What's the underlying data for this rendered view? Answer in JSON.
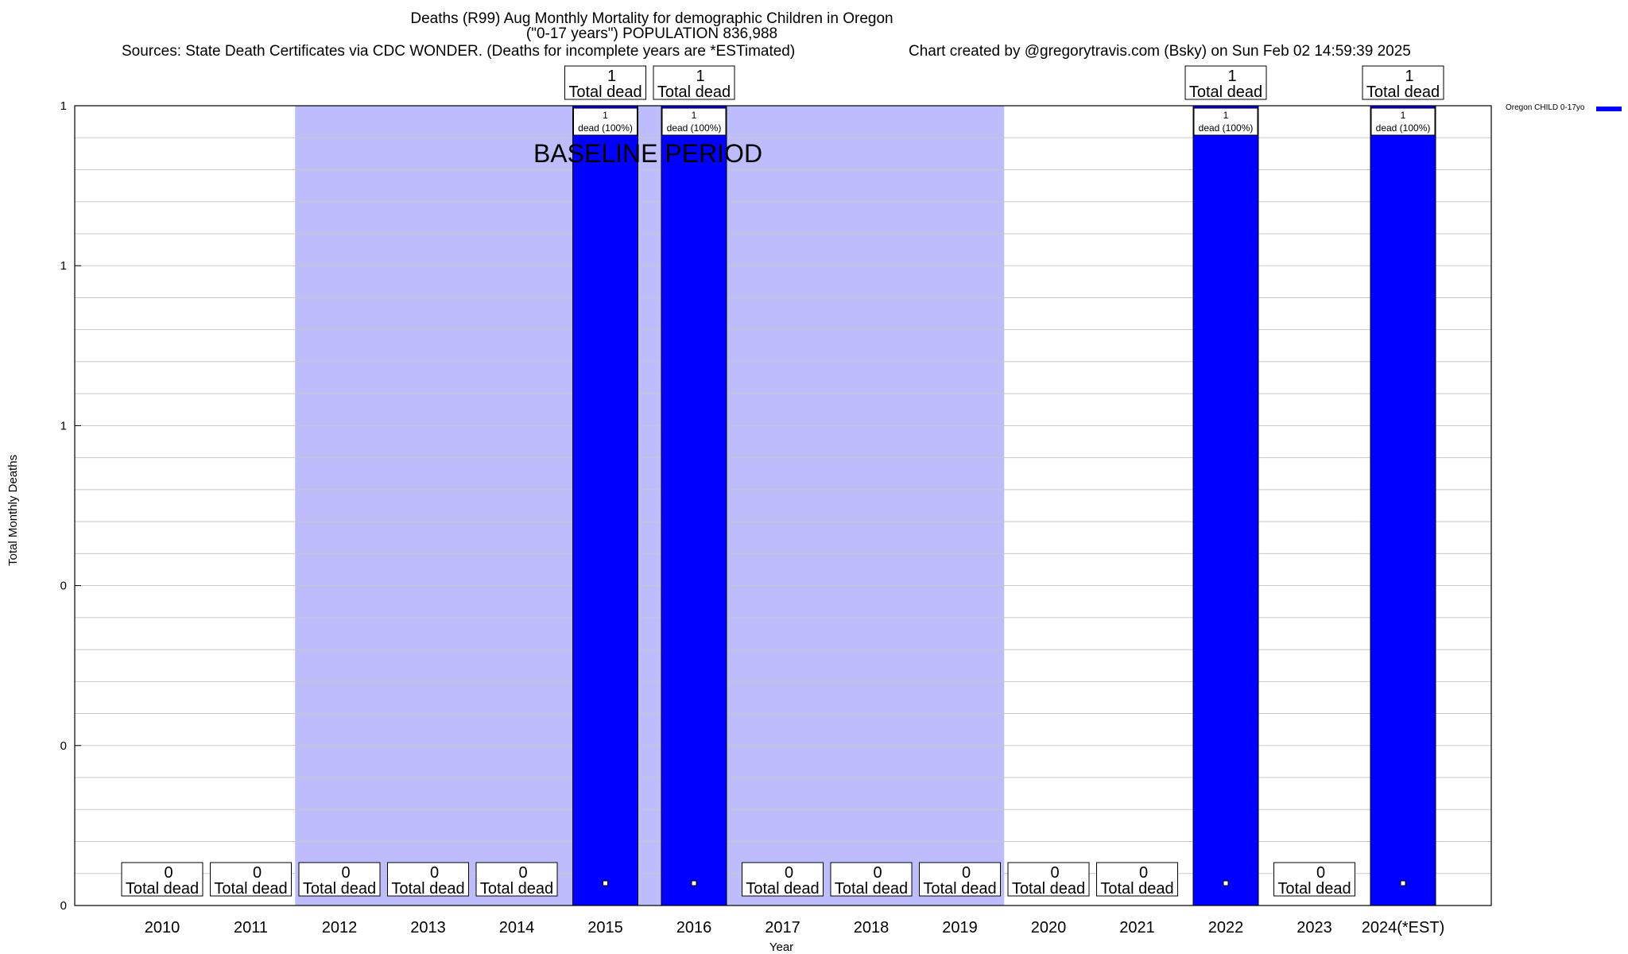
{
  "header": {
    "title_line1": "Deaths (R99) Aug Monthly Mortality for demographic Children in Oregon",
    "title_line2": "(\"0-17 years\") POPULATION 836,988",
    "sources": "Sources: State Death Certificates via CDC WONDER. (Deaths for incomplete years are *ESTimated)",
    "credit": "Chart created by @gregorytravis.com (Bsky) on Sun Feb 02 14:59:39 2025"
  },
  "chart_data": {
    "type": "bar",
    "title": "Deaths (R99) Aug Monthly Mortality for demographic Children in Oregon",
    "xlabel": "Year",
    "ylabel": "Total Monthly Deaths",
    "categories": [
      "2010",
      "2011",
      "2012",
      "2013",
      "2014",
      "2015",
      "2016",
      "2017",
      "2018",
      "2019",
      "2020",
      "2021",
      "2022",
      "2023",
      "2024(*EST)"
    ],
    "series": [
      {
        "name": "Oregon CHILD 0-17yo",
        "color": "#0000ff",
        "values": [
          0,
          0,
          0,
          0,
          0,
          1,
          1,
          0,
          0,
          0,
          0,
          0,
          1,
          0,
          1
        ]
      }
    ],
    "ylim": [
      0,
      1
    ],
    "yticks": [
      0,
      0.2,
      0.4,
      0.6,
      0.8,
      1
    ],
    "ytick_labels": [
      "0",
      "0",
      "0",
      "1",
      "1",
      "1"
    ],
    "total_labels": [
      {
        "count": "0",
        "text": "Total dead"
      },
      {
        "count": "0",
        "text": "Total dead"
      },
      {
        "count": "0",
        "text": "Total dead"
      },
      {
        "count": "0",
        "text": "Total dead"
      },
      {
        "count": "0",
        "text": "Total dead"
      },
      {
        "count": "1",
        "text": "Total dead"
      },
      {
        "count": "1",
        "text": "Total dead"
      },
      {
        "count": "0",
        "text": "Total dead"
      },
      {
        "count": "0",
        "text": "Total dead"
      },
      {
        "count": "0",
        "text": "Total dead"
      },
      {
        "count": "0",
        "text": "Total dead"
      },
      {
        "count": "0",
        "text": "Total dead"
      },
      {
        "count": "1",
        "text": "Total dead"
      },
      {
        "count": "0",
        "text": "Total dead"
      },
      {
        "count": "1",
        "text": "Total dead"
      }
    ],
    "bar_inner_labels": [
      null,
      null,
      null,
      null,
      null,
      {
        "count": "1",
        "text": "dead (100%)"
      },
      {
        "count": "1",
        "text": "dead (100%)"
      },
      null,
      null,
      null,
      null,
      null,
      {
        "count": "1",
        "text": "dead (100%)"
      },
      null,
      {
        "count": "1",
        "text": "dead (100%)"
      }
    ],
    "baseline": {
      "label": "BASELINE PERIOD",
      "start": "2012",
      "end": "2019",
      "color": "#bdbdfc"
    },
    "grid": true,
    "legend_position": "top-right"
  }
}
